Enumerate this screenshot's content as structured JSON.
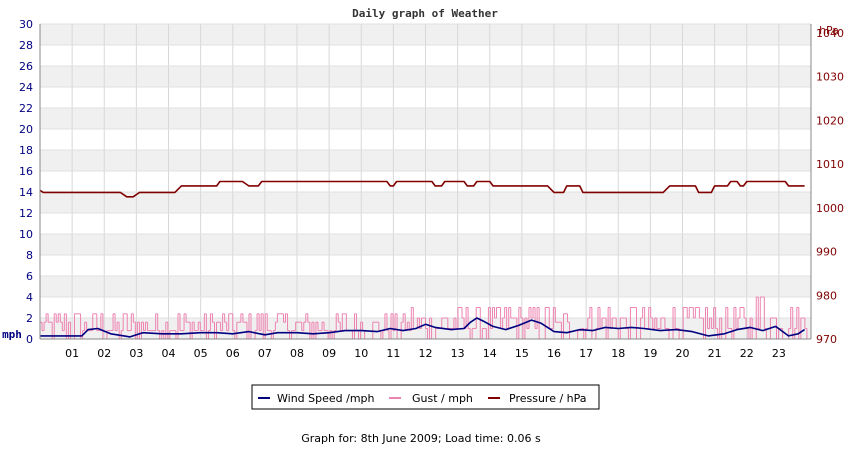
{
  "chart_data": {
    "type": "line",
    "title": "Daily graph of Weather",
    "x_ticks": [
      "01",
      "02",
      "03",
      "04",
      "05",
      "06",
      "07",
      "08",
      "09",
      "10",
      "11",
      "12",
      "13",
      "14",
      "15",
      "16",
      "17",
      "18",
      "19",
      "20",
      "21",
      "22",
      "23"
    ],
    "y_left": {
      "unit": "mph",
      "range": [
        0,
        30
      ],
      "ticks": [
        0,
        2,
        4,
        6,
        8,
        10,
        12,
        14,
        16,
        18,
        20,
        22,
        24,
        26,
        28,
        30
      ]
    },
    "y_right": {
      "unit": "hPa",
      "range": [
        970,
        1042
      ],
      "ticks": [
        970,
        980,
        990,
        1000,
        1010,
        1020,
        1030,
        1040
      ]
    },
    "grid": true,
    "legend_position": "bottom",
    "series": [
      {
        "name": "Wind Speed /mph",
        "color": "#000080",
        "axis": "left",
        "points": [
          [
            0,
            0.3
          ],
          [
            1.3,
            0.3
          ],
          [
            1.5,
            0.9
          ],
          [
            1.8,
            1.0
          ],
          [
            2.2,
            0.5
          ],
          [
            2.8,
            0.2
          ],
          [
            3.2,
            0.6
          ],
          [
            3.8,
            0.5
          ],
          [
            4.4,
            0.5
          ],
          [
            5.0,
            0.6
          ],
          [
            5.5,
            0.6
          ],
          [
            6.0,
            0.5
          ],
          [
            6.5,
            0.7
          ],
          [
            7.0,
            0.4
          ],
          [
            7.4,
            0.6
          ],
          [
            8.0,
            0.6
          ],
          [
            8.5,
            0.5
          ],
          [
            9.0,
            0.6
          ],
          [
            9.5,
            0.8
          ],
          [
            10.0,
            0.8
          ],
          [
            10.5,
            0.7
          ],
          [
            10.9,
            1.0
          ],
          [
            11.3,
            0.8
          ],
          [
            11.7,
            1.0
          ],
          [
            12.0,
            1.4
          ],
          [
            12.3,
            1.1
          ],
          [
            12.8,
            0.9
          ],
          [
            13.2,
            1.0
          ],
          [
            13.4,
            1.6
          ],
          [
            13.6,
            2.0
          ],
          [
            13.8,
            1.7
          ],
          [
            14.1,
            1.2
          ],
          [
            14.5,
            0.9
          ],
          [
            14.9,
            1.3
          ],
          [
            15.3,
            1.8
          ],
          [
            15.6,
            1.5
          ],
          [
            16.0,
            0.7
          ],
          [
            16.4,
            0.6
          ],
          [
            16.8,
            0.9
          ],
          [
            17.2,
            0.8
          ],
          [
            17.6,
            1.1
          ],
          [
            18.0,
            1.0
          ],
          [
            18.4,
            1.1
          ],
          [
            18.8,
            1.0
          ],
          [
            19.3,
            0.8
          ],
          [
            19.8,
            0.9
          ],
          [
            20.3,
            0.7
          ],
          [
            20.8,
            0.3
          ],
          [
            21.3,
            0.5
          ],
          [
            21.7,
            0.9
          ],
          [
            22.1,
            1.1
          ],
          [
            22.5,
            0.8
          ],
          [
            22.9,
            1.2
          ],
          [
            23.3,
            0.3
          ],
          [
            23.6,
            0.5
          ],
          [
            23.8,
            0.9
          ]
        ]
      },
      {
        "name": "Gust / mph",
        "color": "#ee82b0",
        "axis": "left"
      },
      {
        "name": "Pressure / hPa",
        "color": "#800000",
        "axis": "right",
        "points": [
          [
            0,
            1004
          ],
          [
            0.1,
            1003.5
          ],
          [
            2.5,
            1003.5
          ],
          [
            2.7,
            1002.5
          ],
          [
            2.9,
            1002.5
          ],
          [
            3.1,
            1003.5
          ],
          [
            4.2,
            1003.5
          ],
          [
            4.4,
            1005
          ],
          [
            5.5,
            1005
          ],
          [
            5.6,
            1006
          ],
          [
            6.3,
            1006
          ],
          [
            6.5,
            1005
          ],
          [
            6.8,
            1005
          ],
          [
            6.9,
            1006
          ],
          [
            10.8,
            1006
          ],
          [
            10.9,
            1005
          ],
          [
            11.0,
            1005
          ],
          [
            11.1,
            1006
          ],
          [
            12.2,
            1006
          ],
          [
            12.3,
            1005
          ],
          [
            12.5,
            1005
          ],
          [
            12.6,
            1006
          ],
          [
            13.2,
            1006
          ],
          [
            13.3,
            1005
          ],
          [
            13.5,
            1005
          ],
          [
            13.6,
            1006
          ],
          [
            14.0,
            1006
          ],
          [
            14.1,
            1005
          ],
          [
            15.8,
            1005
          ],
          [
            16.0,
            1003.5
          ],
          [
            16.3,
            1003.5
          ],
          [
            16.4,
            1005
          ],
          [
            16.8,
            1005
          ],
          [
            16.9,
            1003.5
          ],
          [
            19.4,
            1003.5
          ],
          [
            19.6,
            1005
          ],
          [
            20.4,
            1005
          ],
          [
            20.5,
            1003.5
          ],
          [
            20.9,
            1003.5
          ],
          [
            21.0,
            1005
          ],
          [
            21.4,
            1005
          ],
          [
            21.5,
            1006
          ],
          [
            21.7,
            1006
          ],
          [
            21.8,
            1005
          ],
          [
            21.9,
            1005
          ],
          [
            22.0,
            1006
          ],
          [
            23.2,
            1006
          ],
          [
            23.3,
            1005
          ],
          [
            23.8,
            1005
          ]
        ]
      }
    ]
  },
  "footer": "Graph for: 8th June 2009; Load time: 0.06 s"
}
